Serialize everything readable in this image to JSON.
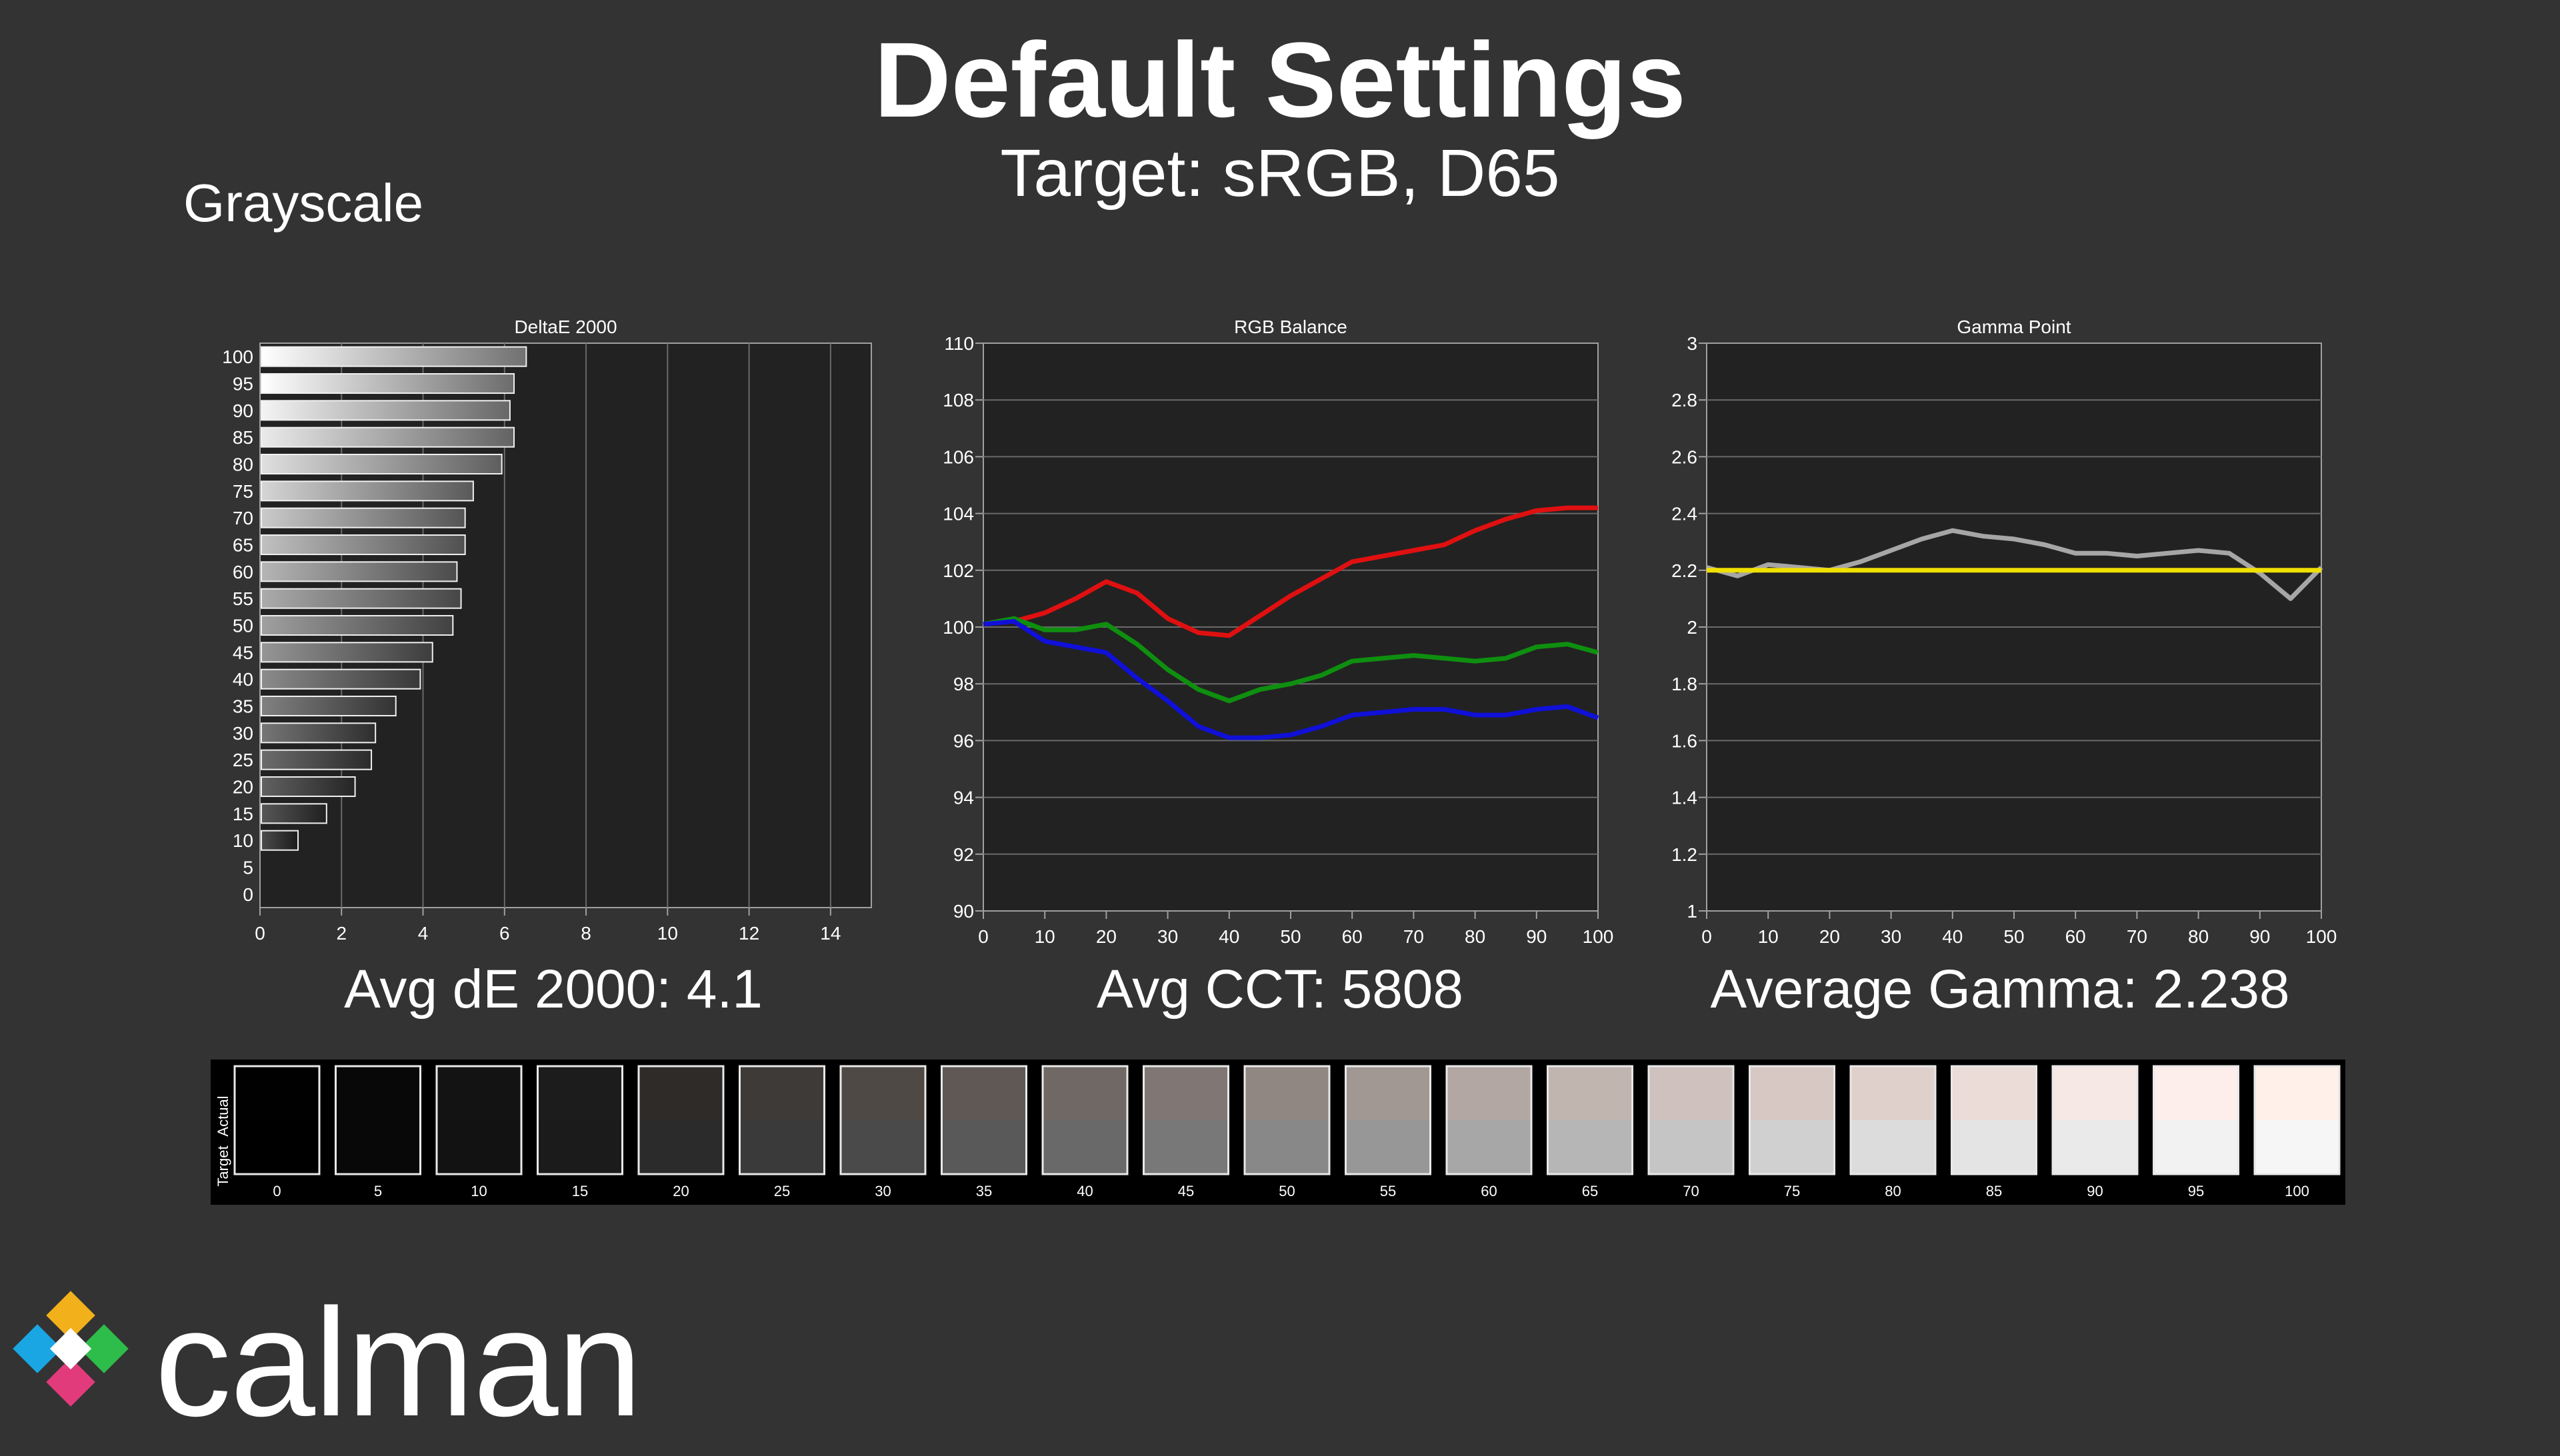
{
  "header": {
    "title": "Default Settings",
    "subtitle": "Target: sRGB, D65",
    "section": "Grayscale"
  },
  "summary": {
    "avg_de": "Avg dE 2000: 4.1",
    "avg_cct": "Avg CCT: 5808",
    "avg_gamma": "Average Gamma: 2.238"
  },
  "brand": {
    "name": "calman"
  },
  "swatches": {
    "actual_label": "Actual",
    "target_label": "Target",
    "levels": [
      "0",
      "5",
      "10",
      "15",
      "20",
      "25",
      "30",
      "35",
      "40",
      "45",
      "50",
      "55",
      "60",
      "65",
      "70",
      "75",
      "80",
      "85",
      "90",
      "95",
      "100"
    ],
    "actual_colors": [
      "#010101",
      "#080808",
      "#131313",
      "#1c1c1c",
      "#2f2b29",
      "#3e3a37",
      "#4f4946",
      "#5f5855",
      "#706864",
      "#807774",
      "#908783",
      "#a29893",
      "#b2a7a3",
      "#c1b5b0",
      "#cfc1bd",
      "#d8c8c4",
      "#e0d0cc",
      "#ecdcd8",
      "#f6e8e4",
      "#fdeeeb",
      "#fff0ea"
    ],
    "target_colors": [
      "#000000",
      "#080808",
      "#121212",
      "#1b1b1b",
      "#2b2b2b",
      "#3a3a3a",
      "#4a4a4a",
      "#595959",
      "#696969",
      "#787878",
      "#888888",
      "#979797",
      "#a7a7a7",
      "#b6b6b6",
      "#c5c5c5",
      "#d0d0d0",
      "#dcdcdc",
      "#e4e4e4",
      "#eaeaea",
      "#f2f2f2",
      "#f6f6f6"
    ]
  },
  "chart_data": [
    {
      "type": "bar",
      "orientation": "horizontal",
      "title": "DeltaE 2000",
      "categories": [
        "0",
        "5",
        "10",
        "15",
        "20",
        "25",
        "30",
        "35",
        "40",
        "45",
        "50",
        "55",
        "60",
        "65",
        "70",
        "75",
        "80",
        "85",
        "90",
        "95",
        "100"
      ],
      "values": [
        0,
        0,
        0.9,
        1.6,
        2.3,
        2.7,
        2.8,
        3.3,
        3.9,
        4.2,
        4.7,
        4.9,
        4.8,
        5.0,
        5.0,
        5.2,
        5.9,
        6.2,
        6.1,
        6.2,
        6.5
      ],
      "xlim": [
        0,
        15
      ],
      "xticks": [
        "0",
        "2",
        "4",
        "6",
        "8",
        "10",
        "12",
        "14"
      ],
      "grid": true
    },
    {
      "type": "line",
      "title": "RGB Balance",
      "x": [
        0,
        5,
        10,
        15,
        20,
        25,
        30,
        35,
        40,
        45,
        50,
        55,
        60,
        65,
        70,
        75,
        80,
        85,
        90,
        95,
        100
      ],
      "series": [
        {
          "color": "#e01010",
          "values": [
            100.1,
            100.2,
            100.5,
            101.0,
            101.6,
            101.2,
            100.3,
            99.8,
            99.7,
            100.4,
            101.1,
            101.7,
            102.3,
            102.5,
            102.7,
            102.9,
            103.4,
            103.8,
            104.1,
            104.2,
            104.2
          ]
        },
        {
          "color": "#0f8f0f",
          "values": [
            100.1,
            100.3,
            99.9,
            99.9,
            100.1,
            99.4,
            98.5,
            97.8,
            97.4,
            97.8,
            98.0,
            98.3,
            98.8,
            98.9,
            99.0,
            98.9,
            98.8,
            98.9,
            99.3,
            99.4,
            99.1
          ]
        },
        {
          "color": "#1010d8",
          "values": [
            100.1,
            100.2,
            99.5,
            99.3,
            99.1,
            98.2,
            97.4,
            96.5,
            96.1,
            96.1,
            96.2,
            96.5,
            96.9,
            97.0,
            97.1,
            97.1,
            96.9,
            96.9,
            97.1,
            97.2,
            96.8
          ]
        }
      ],
      "ylim": [
        90,
        110
      ],
      "yticks": [
        "90",
        "92",
        "94",
        "96",
        "98",
        "100",
        "102",
        "104",
        "106",
        "108",
        "110"
      ],
      "xticks": [
        "0",
        "10",
        "20",
        "30",
        "40",
        "50",
        "60",
        "70",
        "80",
        "90",
        "100"
      ],
      "grid": true
    },
    {
      "type": "line",
      "title": "Gamma Point",
      "x": [
        0,
        5,
        10,
        15,
        20,
        25,
        30,
        35,
        40,
        45,
        50,
        55,
        60,
        65,
        70,
        75,
        80,
        85,
        90,
        95,
        100
      ],
      "series": [
        {
          "color": "#a6a6a6",
          "values": [
            2.21,
            2.18,
            2.22,
            2.21,
            2.2,
            2.23,
            2.27,
            2.31,
            2.34,
            2.32,
            2.31,
            2.29,
            2.26,
            2.26,
            2.25,
            2.26,
            2.27,
            2.26,
            2.19,
            2.1,
            2.21
          ]
        },
        {
          "color": "#f0e000",
          "values": [
            2.2,
            2.2,
            2.2,
            2.2,
            2.2,
            2.2,
            2.2,
            2.2,
            2.2,
            2.2,
            2.2,
            2.2,
            2.2,
            2.2,
            2.2,
            2.2,
            2.2,
            2.2,
            2.2,
            2.2,
            2.2
          ]
        }
      ],
      "ylim": [
        1,
        3
      ],
      "yticks": [
        "1",
        "1.2",
        "1.4",
        "1.6",
        "1.8",
        "2",
        "2.2",
        "2.4",
        "2.6",
        "2.8",
        "3"
      ],
      "xticks": [
        "0",
        "10",
        "20",
        "30",
        "40",
        "50",
        "60",
        "70",
        "80",
        "90",
        "100"
      ],
      "grid": true
    }
  ]
}
